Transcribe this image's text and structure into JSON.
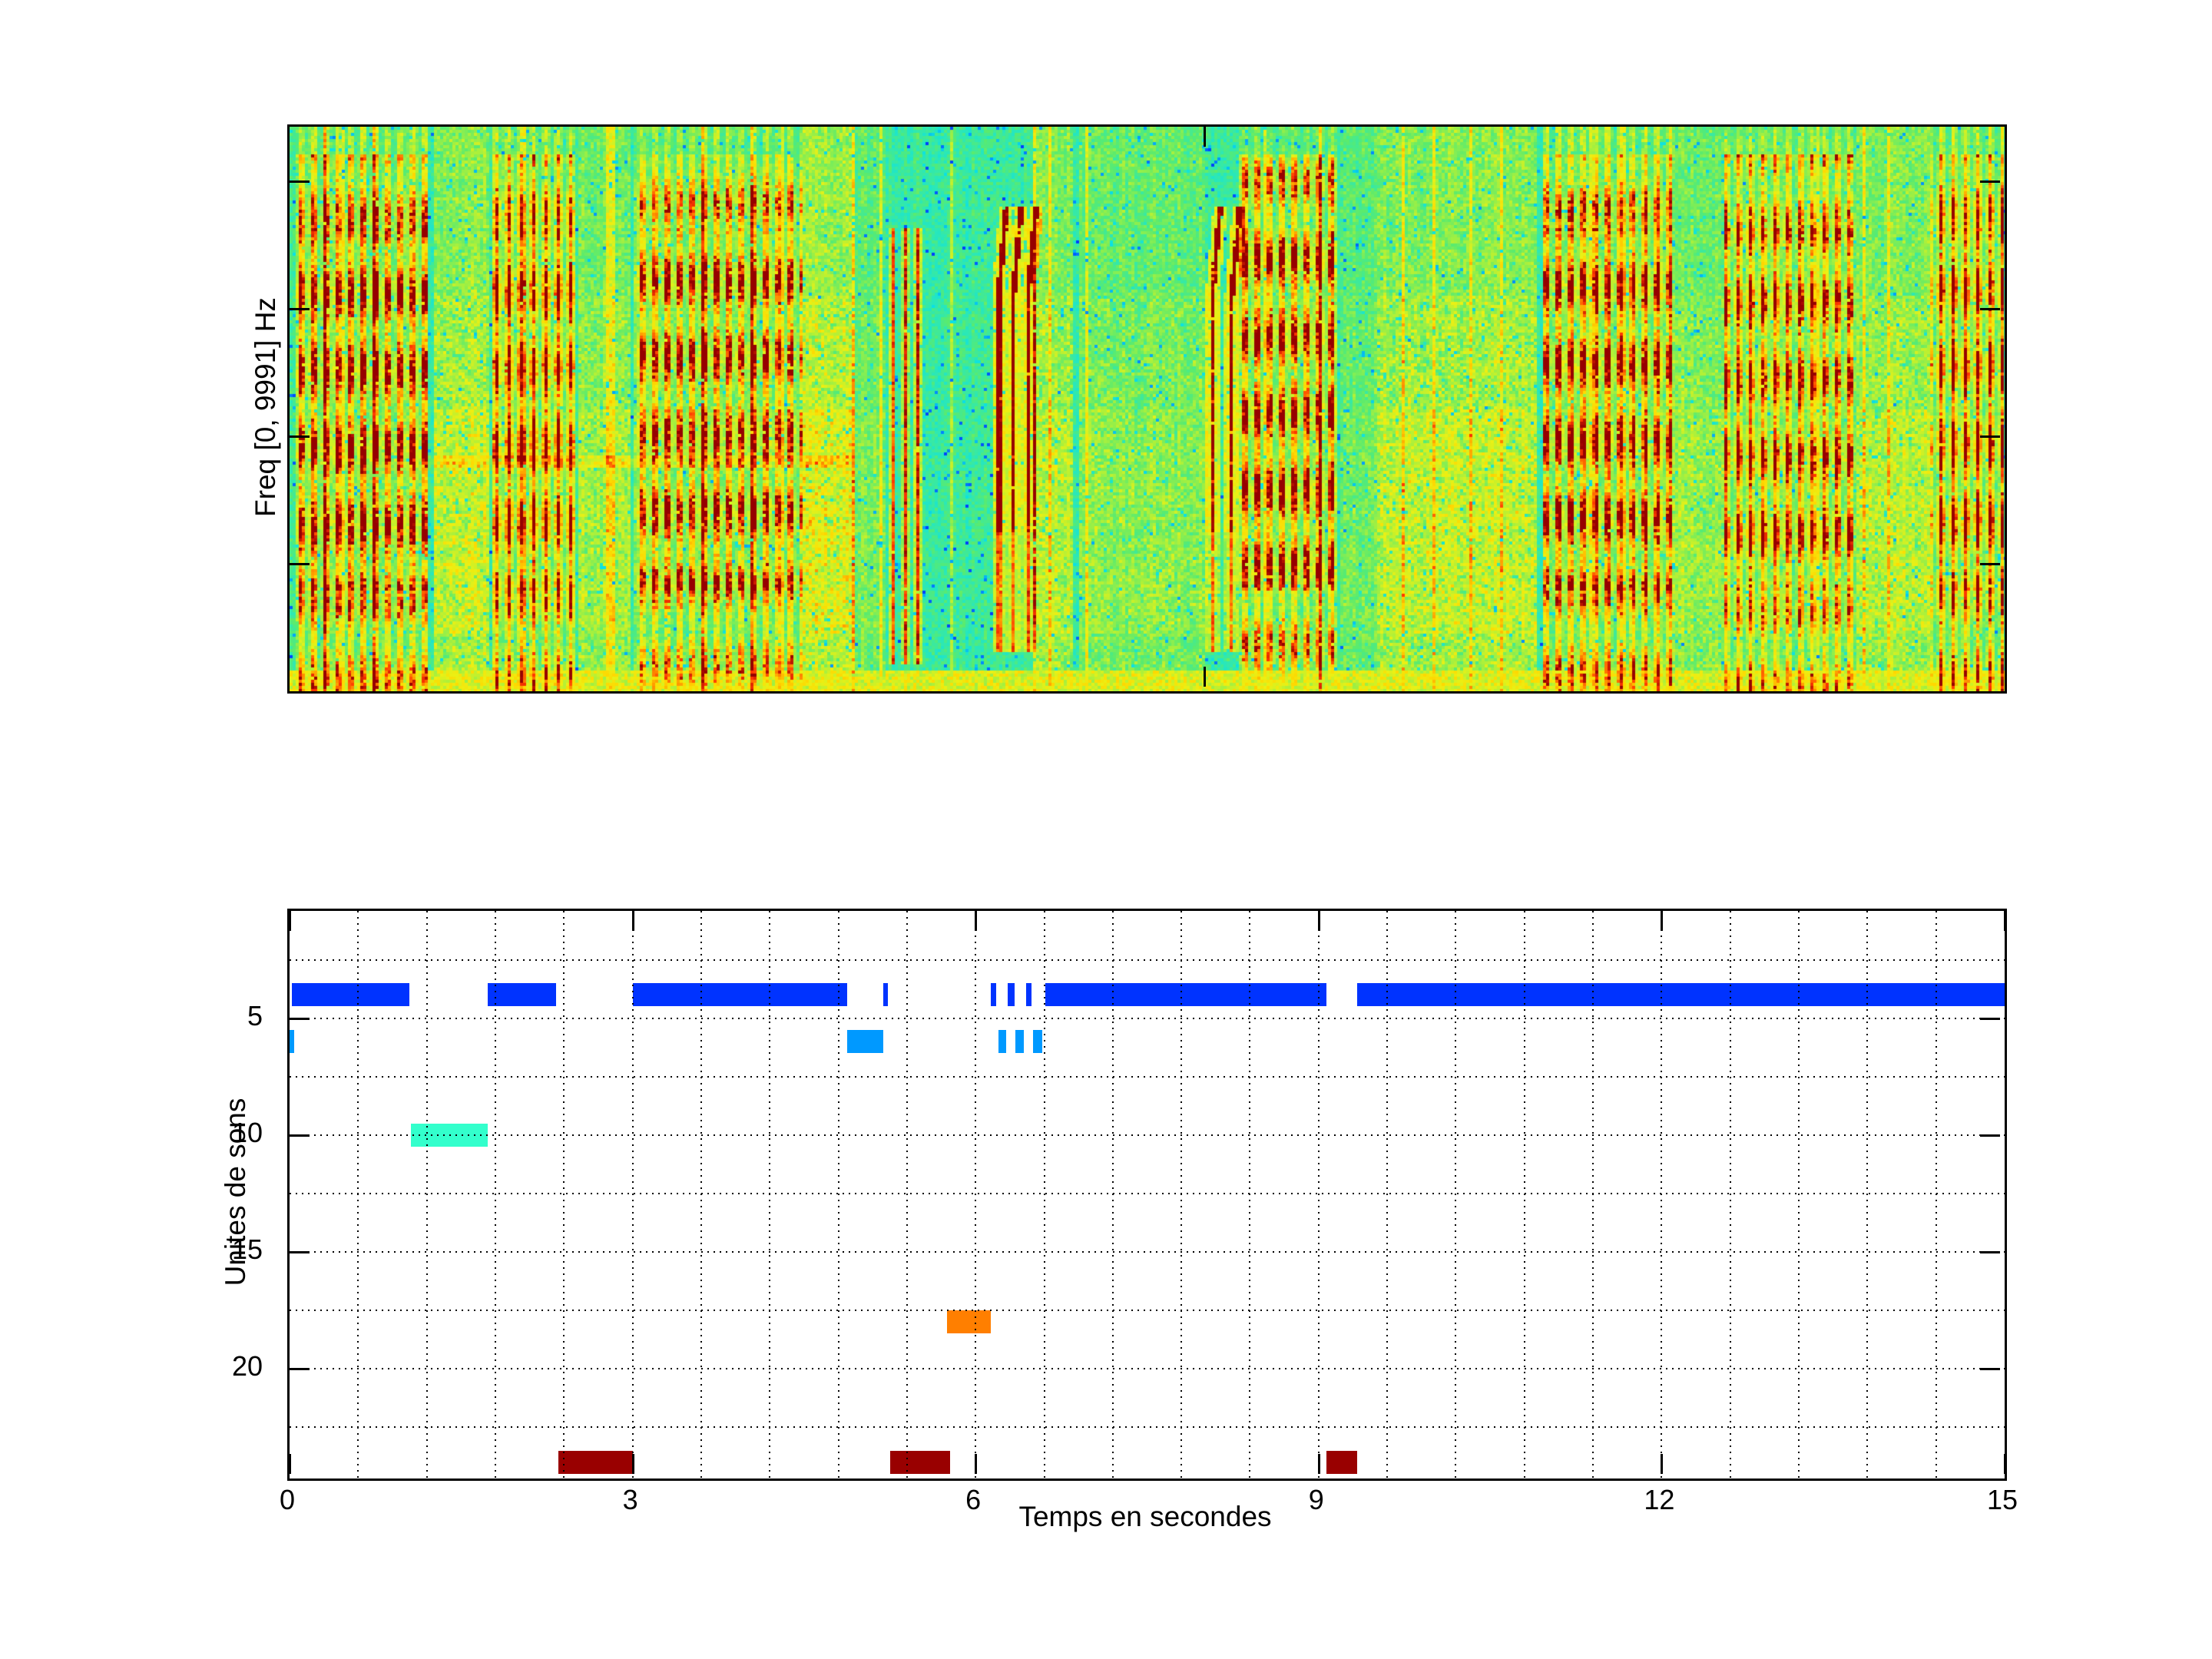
{
  "chart_data": [
    {
      "id": "spectrogram",
      "type": "heatmap",
      "ylabel": "Freq [0, 9991] Hz",
      "x_range_seconds": [
        0,
        15
      ],
      "y_range_hz": [
        0,
        9991
      ],
      "colormap": "jet",
      "background_color": "#2DE8B4",
      "ytick_fractions_from_top": [
        0.097,
        0.322,
        0.548,
        0.774
      ],
      "xtick_seconds": [
        8
      ],
      "events": [
        {
          "t0": 0.05,
          "t1": 1.22,
          "type": "stack",
          "strength": 1.0
        },
        {
          "t0": 1.25,
          "t1": 1.75,
          "type": "wash",
          "strength": 0.8
        },
        {
          "t0": 1.78,
          "t1": 2.5,
          "type": "stack",
          "strength": 1.0
        },
        {
          "t0": 2.52,
          "t1": 2.98,
          "type": "wash",
          "strength": 0.6
        },
        {
          "t0": 3.0,
          "t1": 4.5,
          "type": "stack",
          "strength": 0.95
        },
        {
          "t0": 4.5,
          "t1": 4.95,
          "type": "wash",
          "strength": 0.9
        },
        {
          "t0": 4.95,
          "t1": 5.2,
          "type": "wash",
          "strength": 0.4
        },
        {
          "t0": 5.2,
          "t1": 5.58,
          "type": "thin",
          "strength": 0.9,
          "centers": [
            5.27,
            5.38,
            5.5
          ]
        },
        {
          "t0": 6.12,
          "t1": 6.8,
          "type": "chirps",
          "strength": 1.0,
          "centers": [
            6.2,
            6.33,
            6.46
          ]
        },
        {
          "t0": 6.5,
          "t1": 6.85,
          "type": "wash",
          "strength": 0.7
        },
        {
          "t0": 6.9,
          "t1": 8.0,
          "type": "wash",
          "strength": 0.5
        },
        {
          "t0": 8.0,
          "t1": 8.35,
          "type": "chirps",
          "strength": 1.0,
          "centers": [
            8.07,
            8.24
          ]
        },
        {
          "t0": 8.3,
          "t1": 9.15,
          "type": "stack",
          "strength": 1.0
        },
        {
          "t0": 9.2,
          "t1": 9.5,
          "type": "wash",
          "strength": 0.35
        },
        {
          "t0": 9.5,
          "t1": 10.9,
          "type": "wash",
          "strength": 0.75
        },
        {
          "t0": 10.95,
          "t1": 12.1,
          "type": "stack",
          "strength": 1.0
        },
        {
          "t0": 12.1,
          "t1": 12.55,
          "type": "wash",
          "strength": 0.6
        },
        {
          "t0": 12.55,
          "t1": 13.7,
          "type": "stack",
          "strength": 0.95
        },
        {
          "t0": 13.7,
          "t1": 14.35,
          "type": "wash",
          "strength": 0.7
        },
        {
          "t0": 14.35,
          "t1": 15.0,
          "type": "stack",
          "strength": 1.0
        }
      ]
    },
    {
      "id": "timeline",
      "type": "bar",
      "xlabel": "Temps en secondes",
      "ylabel": "Unites de sons",
      "xlim": [
        0,
        15
      ],
      "ylim_units": [
        0.4,
        24.7
      ],
      "xticks": [
        0,
        3,
        6,
        9,
        12,
        15
      ],
      "xtick_labels": [
        "0",
        "3",
        "6",
        "9",
        "12",
        "15"
      ],
      "yticks": [
        5,
        10,
        15,
        20
      ],
      "ytick_labels": [
        "5",
        "10",
        "15",
        "20"
      ],
      "minor_grid_step_x_seconds": 0.6,
      "minor_grid_step_y_units": 2.5,
      "grid_style": "dotted",
      "series": [
        {
          "unit": 4,
          "color": "#0033FF",
          "segments": [
            [
              0.02,
              1.05
            ],
            [
              1.73,
              2.33
            ],
            [
              3.0,
              4.88
            ],
            [
              5.19,
              5.23
            ],
            [
              6.13,
              6.18
            ],
            [
              6.28,
              6.34
            ],
            [
              6.44,
              6.49
            ],
            [
              6.61,
              9.07
            ],
            [
              9.34,
              15.0
            ]
          ]
        },
        {
          "unit": 6,
          "color": "#0099FF",
          "segments": [
            [
              0.0,
              0.04
            ],
            [
              4.88,
              5.19
            ],
            [
              6.2,
              6.27
            ],
            [
              6.35,
              6.42
            ],
            [
              6.5,
              6.58
            ]
          ]
        },
        {
          "unit": 10,
          "color": "#33FFCC",
          "segments": [
            [
              1.06,
              1.73
            ]
          ]
        },
        {
          "unit": 18,
          "color": "#FF7F00",
          "segments": [
            [
              5.75,
              6.13
            ]
          ]
        },
        {
          "unit": 24,
          "color": "#990000",
          "segments": [
            [
              2.35,
              3.0
            ],
            [
              5.25,
              5.78
            ],
            [
              9.07,
              9.34
            ]
          ]
        }
      ]
    }
  ]
}
